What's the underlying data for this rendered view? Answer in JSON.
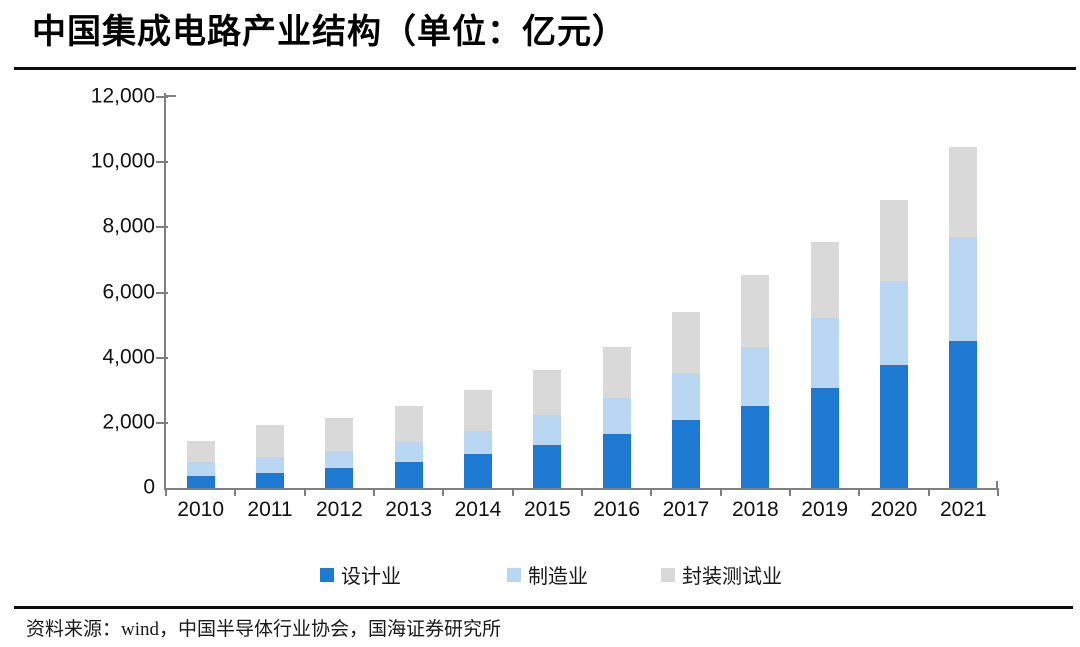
{
  "page": {
    "title": "中国集成电路产业结构（单位：亿元）",
    "footer_source": "资料来源：wind，中国半导体行业协会，国海证券研究所"
  },
  "chart_data": {
    "type": "bar",
    "stacked": true,
    "title": "中国集成电路产业结构",
    "unit": "亿元",
    "categories": [
      "2010",
      "2011",
      "2012",
      "2013",
      "2014",
      "2015",
      "2016",
      "2017",
      "2018",
      "2019",
      "2020",
      "2021"
    ],
    "series": [
      {
        "name": "设计业",
        "color": "#1e79d2",
        "values": [
          363.8,
          473.7,
          621.7,
          808.8,
          1047.4,
          1325.0,
          1644.3,
          2073.5,
          2519.3,
          3063.5,
          3778.4,
          4519.0
        ]
      },
      {
        "name": "制造业",
        "color": "#b9d7f3",
        "values": [
          447.1,
          471.7,
          501.1,
          600.9,
          712.1,
          900.8,
          1126.9,
          1448.1,
          1818.2,
          2149.1,
          2560.1,
          3176.3
        ]
      },
      {
        "name": "封装测试业",
        "color": "#d9d9d9",
        "values": [
          629.2,
          988.3,
          1035.7,
          1098.8,
          1255.9,
          1384.0,
          1564.3,
          1889.7,
          2193.9,
          2349.7,
          2509.5,
          2763.0
        ]
      }
    ],
    "totals": [
      1440.1,
      1933.7,
      2158.5,
      2508.5,
      3015.4,
      3609.8,
      4335.5,
      5411.3,
      6531.4,
      7562.3,
      8848.0,
      10458.3
    ],
    "ylim": [
      0,
      12000
    ],
    "yticks": [
      0,
      2000,
      4000,
      6000,
      8000,
      10000,
      12000
    ],
    "ytick_labels": [
      "0",
      "2,000",
      "4,000",
      "6,000",
      "8,000",
      "10,000",
      "12,000"
    ],
    "grid": false,
    "legend_position": "bottom",
    "axis_color": "#7f7f7f",
    "text_color": "#121212"
  }
}
